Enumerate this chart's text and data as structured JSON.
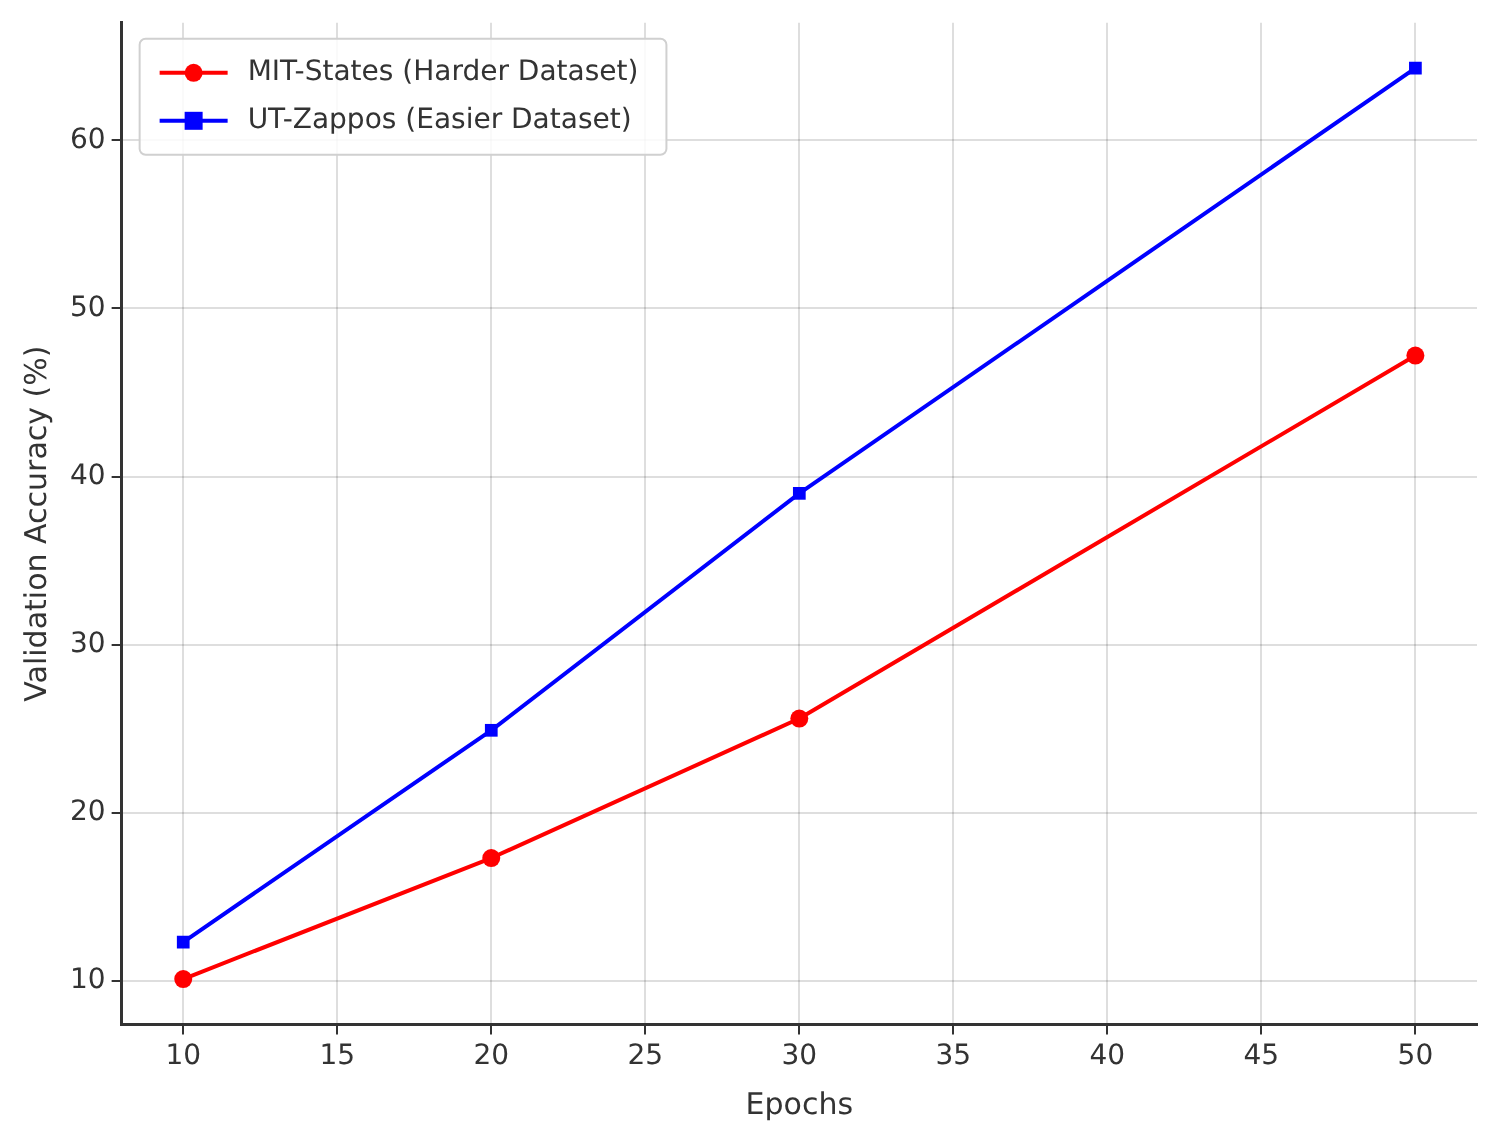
{
  "chart_data": {
    "type": "line",
    "xlabel": "Epochs",
    "ylabel": "Validation Accuracy (%)",
    "x": [
      10,
      20,
      30,
      50
    ],
    "series": [
      {
        "name": "MIT-States (Harder Dataset)",
        "color": "#ff0000",
        "marker": "circle",
        "values": [
          10.1,
          17.3,
          25.6,
          47.2
        ]
      },
      {
        "name": "UT-Zappos (Easier Dataset)",
        "color": "#0000ff",
        "marker": "square",
        "values": [
          12.3,
          24.9,
          39.0,
          64.3
        ]
      }
    ],
    "xlim": [
      8,
      52
    ],
    "xticks": [
      10,
      15,
      20,
      25,
      30,
      35,
      40,
      45,
      50
    ],
    "ylim": [
      7.4,
      67
    ],
    "yticks": [
      10,
      20,
      30,
      40,
      50,
      60
    ],
    "grid": true,
    "legend": "top left",
    "line_style": "solid"
  }
}
